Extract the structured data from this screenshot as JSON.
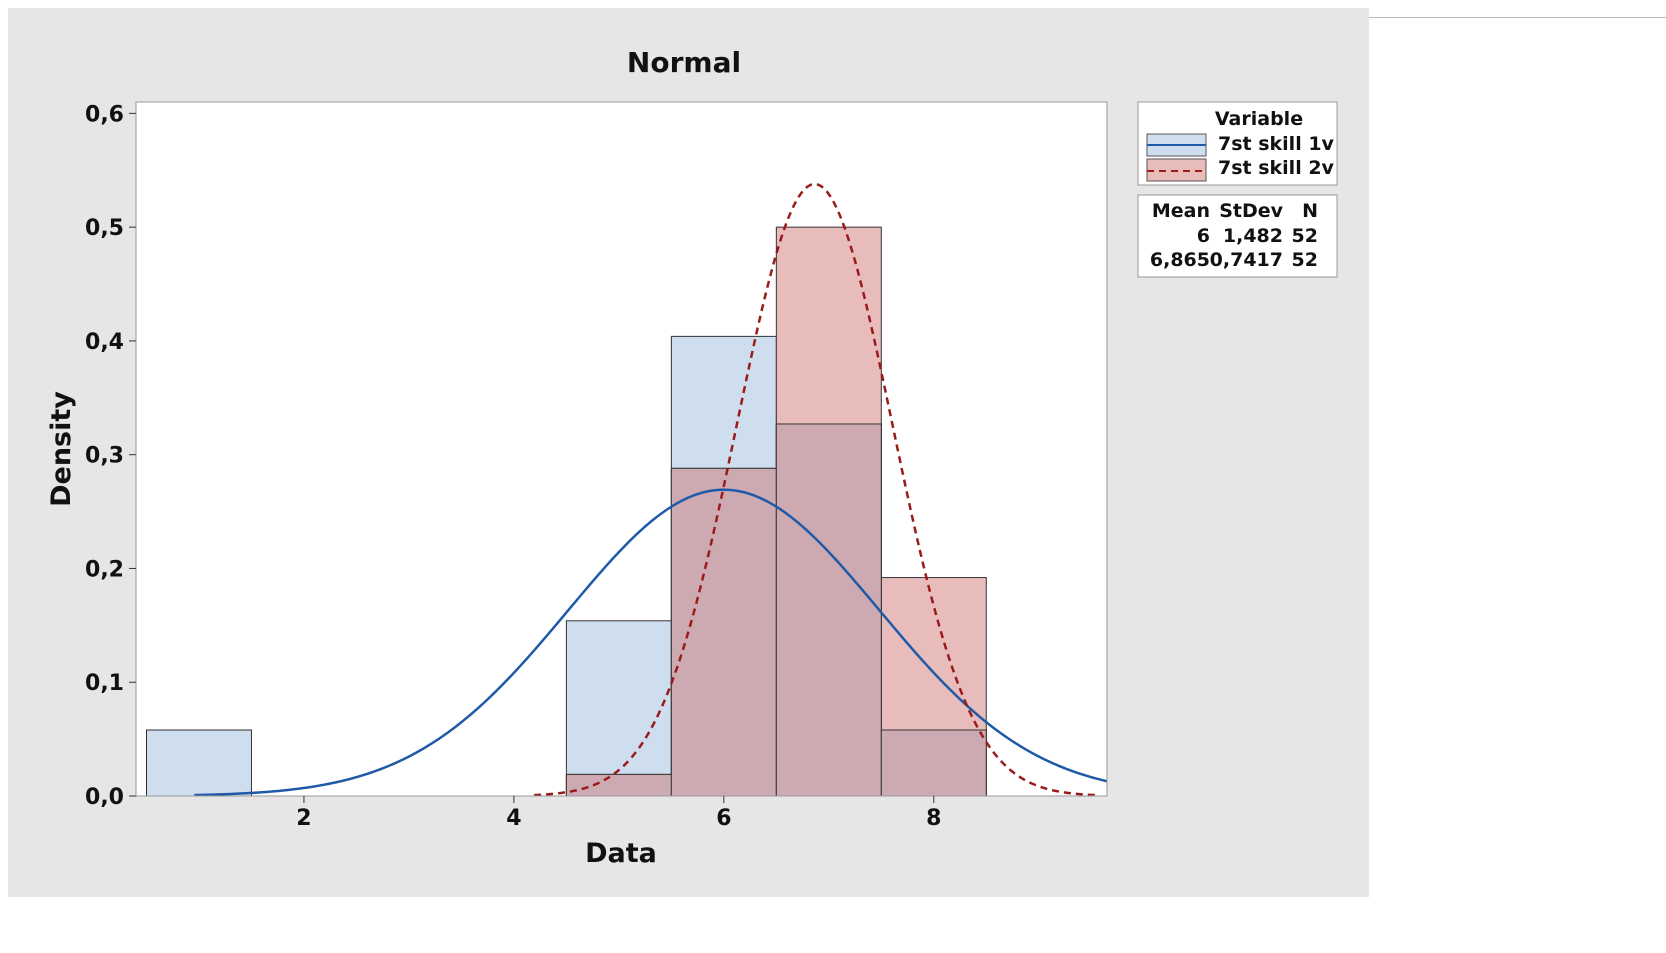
{
  "chart_data": {
    "type": "bar",
    "title": "Normal",
    "xlabel": "Data",
    "ylabel": "Density",
    "xlim": [
      0.4,
      9.65
    ],
    "ylim": [
      0,
      0.61
    ],
    "x_ticks": [
      {
        "value": 2,
        "label": "2"
      },
      {
        "value": 4,
        "label": "4"
      },
      {
        "value": 6,
        "label": "6"
      },
      {
        "value": 8,
        "label": "8"
      }
    ],
    "y_ticks": [
      {
        "value": 0.0,
        "label": "0,0"
      },
      {
        "value": 0.1,
        "label": "0,1"
      },
      {
        "value": 0.2,
        "label": "0,2"
      },
      {
        "value": 0.3,
        "label": "0,3"
      },
      {
        "value": 0.4,
        "label": "0,4"
      },
      {
        "value": 0.5,
        "label": "0,5"
      },
      {
        "value": 0.6,
        "label": "0,6"
      }
    ],
    "bin_width": 1,
    "series": [
      {
        "name": "7st skill 1v",
        "fill": "#cfdeef",
        "line_color": "#1f5aa8",
        "line_style": "solid",
        "mean": 6,
        "stdev": 1.482,
        "n": 52,
        "bin_centers": [
          1,
          5,
          6,
          7,
          8
        ],
        "densities": [
          0.058,
          0.154,
          0.404,
          0.327,
          0.058
        ]
      },
      {
        "name": "7st skill 2v",
        "fill": "#e9bcbc",
        "line_color": "#9b1b1b",
        "line_style": "dashed",
        "mean": 6.865,
        "stdev": 0.7417,
        "n": 52,
        "bin_centers": [
          5,
          6,
          7,
          8
        ],
        "densities": [
          0.019,
          0.288,
          0.5,
          0.192
        ]
      }
    ],
    "overlap_fill": "#cdaab2",
    "legend": {
      "title": "Variable",
      "placement": "right",
      "stats_headers": [
        "Mean",
        "StDev",
        "N"
      ],
      "stats_rows": [
        [
          "6",
          "1,482",
          "52"
        ],
        [
          "6,865",
          "0,7417",
          "52"
        ]
      ]
    }
  }
}
